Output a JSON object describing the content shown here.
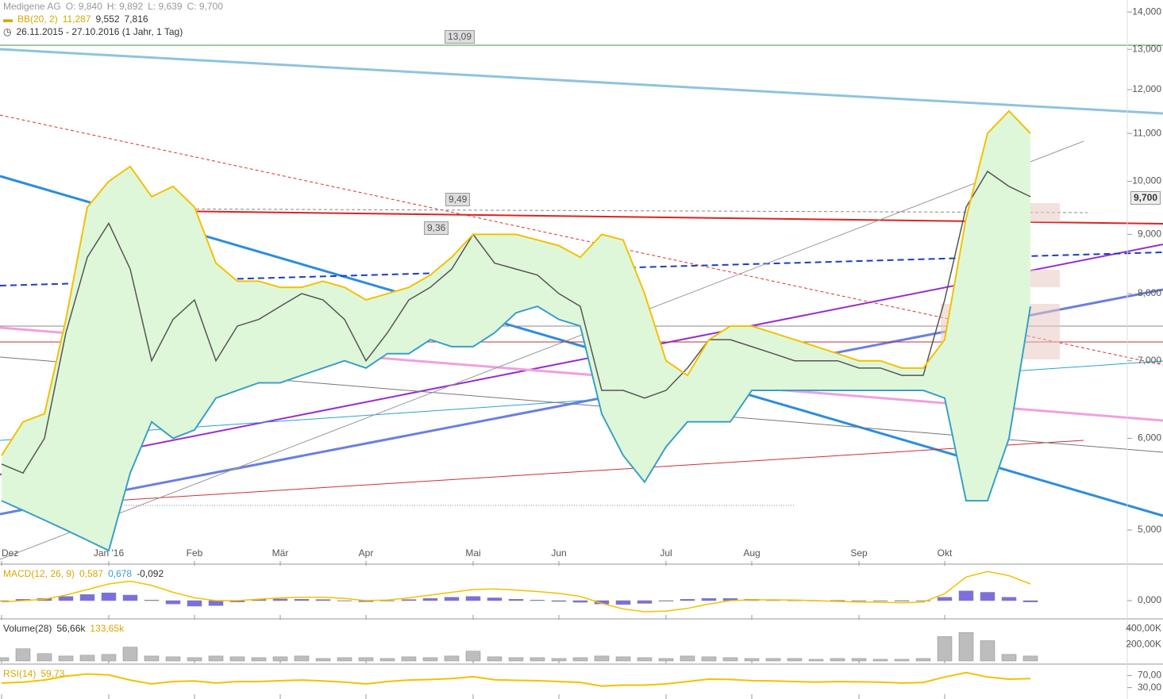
{
  "chart_data": [
    {
      "type": "line",
      "title": "Medigene AG",
      "ohlc_labels": [
        "O: 9,840",
        "H: 9,892",
        "L: 9,639",
        "C: 9,700"
      ],
      "indicator": "BB(20, 2)",
      "indicator_values": [
        "11,287",
        "9,552",
        "7,816"
      ],
      "period": "26.11.2015 - 27.10.2016 (1 Jahr, 1 Tag)",
      "annotations": [
        "13,09",
        "9,49",
        "9,36"
      ],
      "last_price": "9,700",
      "categories": [
        "Dez",
        null,
        null,
        null,
        null,
        "Jan '16",
        null,
        null,
        null,
        "Feb",
        null,
        null,
        null,
        "Mär",
        null,
        null,
        null,
        "Apr",
        null,
        null,
        null,
        null,
        "Mai",
        null,
        null,
        null,
        "Jun",
        null,
        null,
        null,
        null,
        "Jul",
        null,
        null,
        null,
        "Aug",
        null,
        null,
        null,
        null,
        "Sep",
        null,
        null,
        null,
        "Okt",
        null,
        null,
        null,
        null
      ],
      "series": [
        {
          "color": "#555555",
          "values": [
            5.7,
            5.6,
            6.0,
            7.4,
            8.6,
            9.2,
            8.4,
            7.0,
            7.6,
            7.9,
            7.0,
            7.5,
            7.6,
            7.8,
            8.0,
            7.9,
            7.6,
            7.0,
            7.4,
            7.9,
            8.1,
            8.4,
            9.0,
            8.5,
            8.4,
            8.3,
            8.0,
            7.8,
            6.6,
            6.6,
            6.5,
            6.6,
            6.9,
            7.3,
            7.3,
            7.2,
            7.1,
            7.0,
            7.0,
            7.0,
            6.9,
            6.9,
            6.8,
            6.8,
            7.9,
            9.5,
            10.2,
            9.9,
            9.7
          ]
        },
        {
          "color": "#f5c000",
          "values": [
            5.8,
            6.2,
            6.3,
            7.6,
            9.5,
            10.0,
            10.3,
            9.7,
            9.9,
            9.5,
            8.5,
            8.2,
            8.2,
            8.1,
            8.1,
            8.2,
            8.1,
            7.9,
            8.0,
            8.1,
            8.3,
            8.6,
            9.0,
            9.0,
            9.0,
            8.9,
            8.8,
            8.6,
            9.0,
            8.9,
            8.0,
            7.0,
            6.8,
            7.3,
            7.5,
            7.5,
            7.4,
            7.3,
            7.2,
            7.1,
            7.0,
            7.0,
            6.9,
            6.9,
            7.3,
            9.3,
            11.0,
            11.5,
            11.0
          ]
        },
        {
          "color": "#3a9fc8",
          "values": [
            5.3,
            5.2,
            5.1,
            5.0,
            4.9,
            4.8,
            5.6,
            6.2,
            6.0,
            6.1,
            6.5,
            6.6,
            6.7,
            6.7,
            6.8,
            6.9,
            7.0,
            6.9,
            7.1,
            7.1,
            7.3,
            7.2,
            7.2,
            7.4,
            7.7,
            7.8,
            7.6,
            7.5,
            6.3,
            5.8,
            5.5,
            5.9,
            6.2,
            6.2,
            6.2,
            6.6,
            6.6,
            6.6,
            6.6,
            6.6,
            6.6,
            6.6,
            6.6,
            6.6,
            6.5,
            5.3,
            5.3,
            6.0,
            7.8
          ]
        }
      ],
      "band_fill": "#dff7d9",
      "log_scale": true,
      "ylim": [
        4.68,
        14.34
      ],
      "yticks": [
        {
          "value": 14,
          "label": "14,000"
        },
        {
          "value": 13,
          "label": "13,000"
        },
        {
          "value": 12,
          "label": "12,000"
        },
        {
          "value": 11,
          "label": "11,000"
        },
        {
          "value": 10,
          "label": "10,000"
        },
        {
          "value": 9,
          "label": "9,000"
        },
        {
          "value": 8,
          "label": "8,000"
        },
        {
          "value": 7,
          "label": "7,000"
        },
        {
          "value": 6,
          "label": "6,000"
        },
        {
          "value": 5,
          "label": "5,000"
        }
      ]
    },
    {
      "type": "bar",
      "title": "MACD(12, 26, 9)",
      "header_values": [
        "0,587",
        "0,678",
        "-0,092"
      ],
      "color": "#7b6fe0",
      "values": [
        0,
        0.05,
        0.08,
        0.15,
        0.22,
        0.28,
        0.2,
        0.02,
        -0.12,
        -0.2,
        -0.18,
        -0.05,
        0.05,
        0.06,
        0.05,
        0.04,
        0,
        -0.04,
        0,
        0.04,
        0.08,
        0.12,
        0.15,
        0.1,
        0.05,
        0.02,
        -0.03,
        -0.06,
        -0.12,
        -0.14,
        -0.1,
        -0.02,
        0.05,
        0.08,
        0.08,
        0.05,
        0.02,
        0.01,
        0,
        0.01,
        0,
        -0.01,
        -0.02,
        0,
        0.12,
        0.35,
        0.3,
        0.12,
        -0.05
      ],
      "series": [
        {
          "color": "#f5c000",
          "values": [
            -0.05,
            0,
            0.05,
            0.2,
            0.4,
            0.6,
            0.7,
            0.55,
            0.3,
            0.1,
            0,
            0,
            0.05,
            0.1,
            0.12,
            0.12,
            0.08,
            0,
            0.02,
            0.1,
            0.2,
            0.3,
            0.4,
            0.42,
            0.38,
            0.33,
            0.26,
            0.15,
            -0.1,
            -0.3,
            -0.4,
            -0.38,
            -0.28,
            -0.12,
            0,
            0.03,
            0.03,
            0.02,
            0,
            -0.03,
            -0.05,
            -0.06,
            -0.08,
            -0.05,
            0.25,
            0.85,
            1.05,
            0.9,
            0.6
          ]
        }
      ],
      "ylim": [
        -0.6,
        1.2
      ],
      "yticks": [
        {
          "value": 0,
          "label": "0,000"
        }
      ]
    },
    {
      "type": "bar",
      "title": "Volume(28)",
      "header_values": [
        "56,66k",
        "133,65k"
      ],
      "color": "#bdbdbd",
      "values": [
        40000,
        150000,
        90000,
        60000,
        70000,
        80000,
        170000,
        60000,
        50000,
        40000,
        60000,
        50000,
        40000,
        50000,
        60000,
        30000,
        40000,
        40000,
        30000,
        50000,
        40000,
        60000,
        120000,
        50000,
        40000,
        40000,
        30000,
        40000,
        60000,
        50000,
        40000,
        30000,
        60000,
        50000,
        40000,
        30000,
        30000,
        30000,
        20000,
        30000,
        30000,
        20000,
        20000,
        30000,
        300000,
        350000,
        250000,
        80000,
        60000
      ],
      "ylim": [
        0,
        470000
      ],
      "yticks": [
        {
          "value": 400000,
          "label": "400,00K"
        },
        {
          "value": 200000,
          "label": "200,00K"
        }
      ]
    },
    {
      "type": "line",
      "title": "RSI(14)",
      "header_values": [
        "59,73"
      ],
      "series": [
        {
          "color": "#f5c000",
          "values": [
            45,
            48,
            55,
            68,
            75,
            72,
            55,
            42,
            50,
            52,
            45,
            50,
            50,
            53,
            55,
            52,
            48,
            42,
            50,
            55,
            57,
            60,
            66,
            56,
            54,
            53,
            50,
            47,
            35,
            38,
            38,
            42,
            50,
            58,
            57,
            53,
            52,
            50,
            48,
            50,
            49,
            48,
            45,
            47,
            65,
            80,
            65,
            58,
            60
          ]
        }
      ],
      "ylim": [
        0,
        100
      ],
      "yticks": [
        {
          "value": 70,
          "label": "70,00"
        },
        {
          "value": 30,
          "label": "30,00"
        }
      ]
    }
  ]
}
